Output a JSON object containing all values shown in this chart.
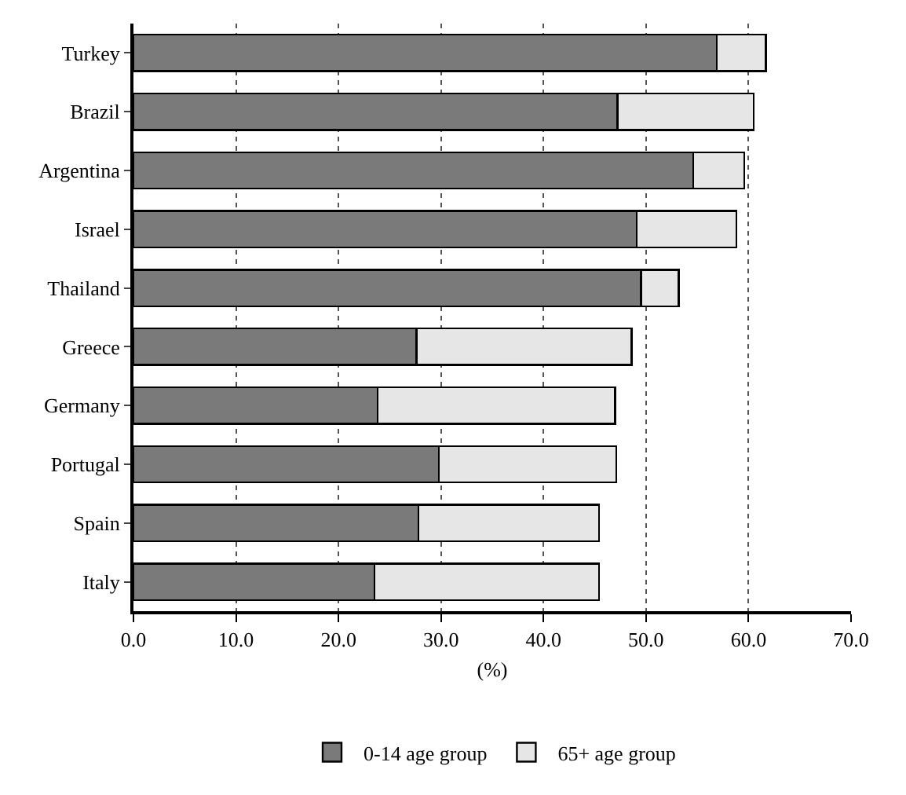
{
  "chart_data": {
    "type": "bar",
    "orientation": "horizontal",
    "stacked": true,
    "categories": [
      "Turkey",
      "Brazil",
      "Argentina",
      "Israel",
      "Thailand",
      "Greece",
      "Germany",
      "Portugal",
      "Spain",
      "Italy"
    ],
    "series": [
      {
        "name": "0-14 age group",
        "color": "#7a7a7a",
        "values": [
          56.9,
          47.2,
          54.6,
          49.1,
          49.5,
          27.6,
          23.8,
          29.8,
          27.8,
          23.5
        ]
      },
      {
        "name": "65+ age group",
        "color": "#e6e6e6",
        "values": [
          4.8,
          13.3,
          5.0,
          9.7,
          3.7,
          21.0,
          23.2,
          17.3,
          17.6,
          21.9
        ]
      }
    ],
    "xlabel": "(%)",
    "xlim": [
      0,
      70
    ],
    "xticks": [
      {
        "value": 0,
        "label": "0.0"
      },
      {
        "value": 10,
        "label": "10.0"
      },
      {
        "value": 20,
        "label": "20.0"
      },
      {
        "value": 30,
        "label": "30.0"
      },
      {
        "value": 40,
        "label": "40.0"
      },
      {
        "value": 50,
        "label": "50.0"
      },
      {
        "value": 60,
        "label": "60.0"
      },
      {
        "value": 70,
        "label": "70.0"
      }
    ],
    "grid": "x",
    "legend": "bottom"
  }
}
